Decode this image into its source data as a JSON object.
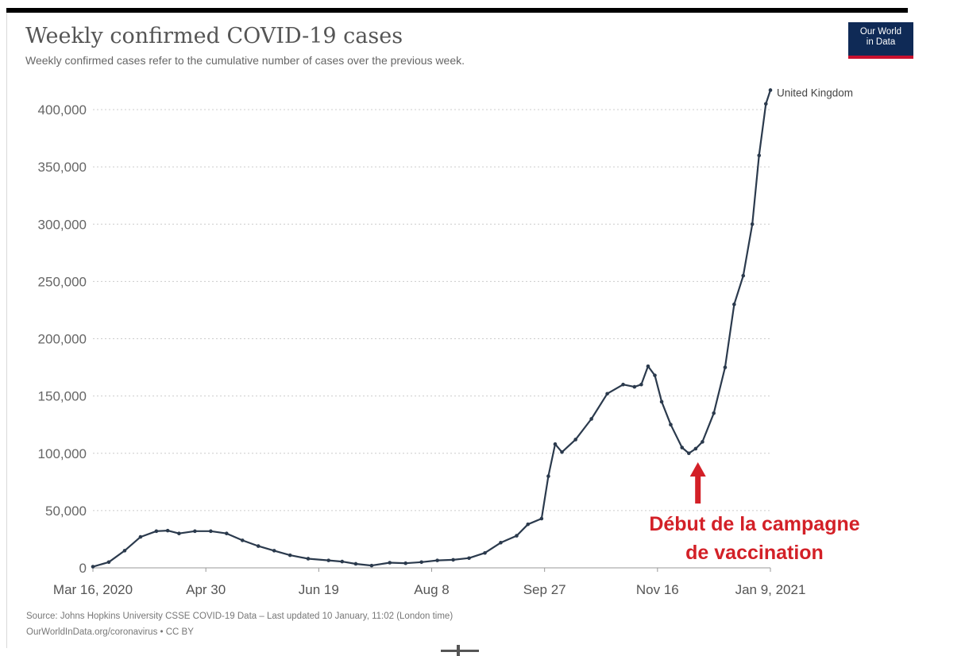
{
  "header": {
    "title": "Weekly confirmed COVID-19 cases",
    "subtitle": "Weekly confirmed cases refer to the cumulative number of cases over the previous week."
  },
  "logo": {
    "line1": "Our World",
    "line2": "in Data"
  },
  "footer": {
    "source": "Source: Johns Hopkins University CSSE COVID-19 Data – Last updated 10 January, 11:02 (London time)",
    "link": "OurWorldInData.org/coronavirus • CC BY"
  },
  "annotation": {
    "line1": "Début de la campagne",
    "line2": "de vaccination"
  },
  "colors": {
    "line": "#2b3a4d",
    "grid": "#cccccc",
    "annotation": "#d32027",
    "logo_bg": "#0f2a56",
    "logo_accent": "#c8102e"
  },
  "chart_data": {
    "type": "line",
    "title": "Weekly confirmed COVID-19 cases",
    "subtitle": "Weekly confirmed cases refer to the cumulative number of cases over the previous week.",
    "x_ticks": [
      "Mar 16, 2020",
      "Apr 30",
      "Jun 19",
      "Aug 8",
      "Sep 27",
      "Nov 16",
      "Jan 9, 2021"
    ],
    "y_ticks": [
      "0",
      "50,000",
      "100,000",
      "150,000",
      "200,000",
      "250,000",
      "300,000",
      "350,000",
      "400,000"
    ],
    "ylim": [
      0,
      400000
    ],
    "xlim": [
      "2020-03-16",
      "2021-01-09"
    ],
    "grid": "horizontal dotted",
    "series": [
      {
        "name": "United Kingdom",
        "points": [
          [
            "2020-03-16",
            1000
          ],
          [
            "2020-03-23",
            5000
          ],
          [
            "2020-03-30",
            15000
          ],
          [
            "2020-04-06",
            27000
          ],
          [
            "2020-04-13",
            32000
          ],
          [
            "2020-04-18",
            32500
          ],
          [
            "2020-04-23",
            30000
          ],
          [
            "2020-04-30",
            32000
          ],
          [
            "2020-05-07",
            32000
          ],
          [
            "2020-05-14",
            30000
          ],
          [
            "2020-05-21",
            24000
          ],
          [
            "2020-05-28",
            19000
          ],
          [
            "2020-06-04",
            15000
          ],
          [
            "2020-06-11",
            11000
          ],
          [
            "2020-06-19",
            8000
          ],
          [
            "2020-06-28",
            6500
          ],
          [
            "2020-07-04",
            5500
          ],
          [
            "2020-07-10",
            3500
          ],
          [
            "2020-07-17",
            2000
          ],
          [
            "2020-07-25",
            4500
          ],
          [
            "2020-08-01",
            4000
          ],
          [
            "2020-08-08",
            5000
          ],
          [
            "2020-08-15",
            6500
          ],
          [
            "2020-08-22",
            7000
          ],
          [
            "2020-08-29",
            8500
          ],
          [
            "2020-09-05",
            13000
          ],
          [
            "2020-09-12",
            22000
          ],
          [
            "2020-09-19",
            28000
          ],
          [
            "2020-09-24",
            38000
          ],
          [
            "2020-09-30",
            43000
          ],
          [
            "2020-10-03",
            80000
          ],
          [
            "2020-10-06",
            108000
          ],
          [
            "2020-10-09",
            101000
          ],
          [
            "2020-10-15",
            112000
          ],
          [
            "2020-10-22",
            130000
          ],
          [
            "2020-10-29",
            152000
          ],
          [
            "2020-11-05",
            160000
          ],
          [
            "2020-11-10",
            158000
          ],
          [
            "2020-11-13",
            160000
          ],
          [
            "2020-11-16",
            176000
          ],
          [
            "2020-11-19",
            168000
          ],
          [
            "2020-11-22",
            145000
          ],
          [
            "2020-11-26",
            125000
          ],
          [
            "2020-12-01",
            105000
          ],
          [
            "2020-12-04",
            100000
          ],
          [
            "2020-12-07",
            104000
          ],
          [
            "2020-12-10",
            110000
          ],
          [
            "2020-12-15",
            135000
          ],
          [
            "2020-12-20",
            175000
          ],
          [
            "2020-12-24",
            230000
          ],
          [
            "2020-12-28",
            255000
          ],
          [
            "2021-01-01",
            300000
          ],
          [
            "2021-01-04",
            360000
          ],
          [
            "2021-01-07",
            405000
          ],
          [
            "2021-01-09",
            417000
          ]
        ]
      }
    ],
    "annotation": {
      "text": "Début de la campagne de vaccination",
      "date": "2020-12-08",
      "style": "red arrow pointing up"
    }
  }
}
